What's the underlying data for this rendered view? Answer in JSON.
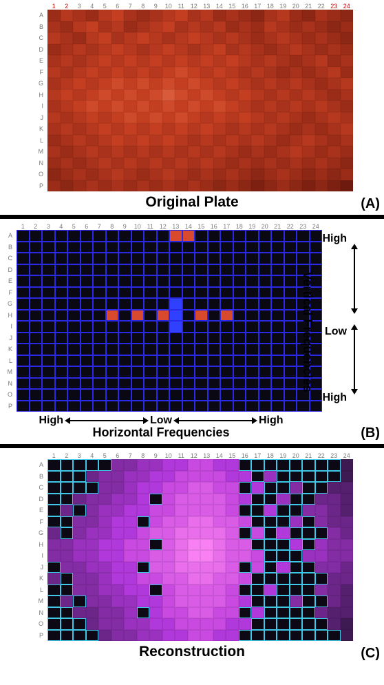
{
  "dims": {
    "rows": 16,
    "cols": 24
  },
  "rowLabels": [
    "A",
    "B",
    "C",
    "D",
    "E",
    "F",
    "G",
    "H",
    "I",
    "J",
    "K",
    "L",
    "M",
    "N",
    "O",
    "P"
  ],
  "colLabels": [
    "1",
    "2",
    "3",
    "4",
    "5",
    "6",
    "7",
    "8",
    "9",
    "10",
    "11",
    "12",
    "13",
    "14",
    "15",
    "16",
    "17",
    "18",
    "19",
    "20",
    "21",
    "22",
    "23",
    "24"
  ],
  "panelA": {
    "caption": "Original Plate",
    "label": "(A)",
    "redCols": [
      1,
      2,
      23,
      24
    ],
    "palette": [
      "#6e1a0e",
      "#7d2012",
      "#8c2615",
      "#9a2c18",
      "#a8321b",
      "#b6381e",
      "#c43e21",
      "#cf4a2a",
      "#d85a3b",
      "#e06b4d"
    ],
    "cells": [
      [
        3,
        5,
        4,
        3,
        5,
        6,
        4,
        3,
        4,
        5,
        6,
        4,
        5,
        3,
        4,
        3,
        2,
        4,
        5,
        3,
        2,
        4,
        3,
        2
      ],
      [
        4,
        3,
        5,
        6,
        4,
        5,
        3,
        4,
        5,
        6,
        4,
        5,
        4,
        5,
        3,
        4,
        3,
        5,
        4,
        3,
        4,
        3,
        2,
        3
      ],
      [
        5,
        4,
        3,
        5,
        6,
        4,
        5,
        6,
        5,
        4,
        5,
        6,
        5,
        4,
        5,
        4,
        3,
        4,
        5,
        4,
        3,
        4,
        3,
        2
      ],
      [
        3,
        4,
        5,
        4,
        5,
        6,
        5,
        4,
        5,
        6,
        5,
        4,
        5,
        6,
        4,
        5,
        4,
        3,
        4,
        5,
        4,
        3,
        4,
        3
      ],
      [
        4,
        5,
        4,
        5,
        6,
        5,
        6,
        5,
        6,
        5,
        6,
        5,
        6,
        5,
        6,
        5,
        4,
        5,
        4,
        3,
        4,
        5,
        3,
        4
      ],
      [
        5,
        4,
        5,
        6,
        5,
        6,
        5,
        6,
        5,
        6,
        7,
        6,
        5,
        6,
        5,
        4,
        5,
        4,
        3,
        4,
        3,
        4,
        5,
        3
      ],
      [
        4,
        5,
        6,
        5,
        6,
        7,
        6,
        7,
        6,
        7,
        6,
        7,
        6,
        5,
        6,
        5,
        4,
        5,
        4,
        5,
        4,
        3,
        4,
        5
      ],
      [
        5,
        6,
        5,
        6,
        7,
        6,
        7,
        6,
        7,
        8,
        7,
        6,
        7,
        6,
        5,
        6,
        5,
        4,
        5,
        4,
        5,
        4,
        3,
        4
      ],
      [
        4,
        5,
        6,
        7,
        6,
        7,
        6,
        7,
        6,
        7,
        6,
        7,
        6,
        7,
        6,
        5,
        4,
        5,
        4,
        5,
        4,
        5,
        4,
        3
      ],
      [
        5,
        4,
        5,
        6,
        5,
        6,
        7,
        6,
        7,
        6,
        7,
        6,
        5,
        6,
        5,
        6,
        5,
        4,
        5,
        4,
        3,
        4,
        5,
        4
      ],
      [
        4,
        5,
        4,
        5,
        6,
        5,
        6,
        5,
        6,
        5,
        6,
        5,
        6,
        5,
        4,
        5,
        4,
        5,
        4,
        3,
        4,
        3,
        4,
        5
      ],
      [
        3,
        4,
        5,
        4,
        5,
        6,
        5,
        6,
        5,
        6,
        5,
        4,
        5,
        4,
        5,
        4,
        5,
        4,
        3,
        4,
        5,
        4,
        3,
        4
      ],
      [
        4,
        3,
        4,
        5,
        4,
        5,
        4,
        5,
        4,
        5,
        4,
        5,
        4,
        5,
        4,
        3,
        4,
        3,
        4,
        5,
        4,
        3,
        4,
        3
      ],
      [
        3,
        4,
        3,
        4,
        5,
        4,
        5,
        4,
        5,
        4,
        5,
        4,
        5,
        4,
        3,
        4,
        3,
        4,
        3,
        4,
        3,
        4,
        3,
        2
      ],
      [
        2,
        3,
        4,
        3,
        4,
        5,
        4,
        3,
        4,
        5,
        4,
        3,
        4,
        3,
        4,
        3,
        2,
        3,
        4,
        3,
        2,
        3,
        2,
        3
      ],
      [
        3,
        2,
        3,
        4,
        3,
        4,
        3,
        4,
        3,
        4,
        3,
        4,
        3,
        2,
        3,
        2,
        1,
        2,
        3,
        2,
        1,
        2,
        1,
        0
      ]
    ]
  },
  "panelB": {
    "caption_h": "Horizontal Frequencies",
    "caption_v": "Vertical Frequencies",
    "label": "(B)",
    "text": {
      "high": "High",
      "low": "Low"
    },
    "bg": "#2a2ae6",
    "cellColor": "#0a0812",
    "highlightRed": "#d9492e",
    "highlightBlue": "#3040ff",
    "redCells": [
      [
        0,
        12
      ],
      [
        0,
        13
      ],
      [
        7,
        7
      ],
      [
        7,
        9
      ],
      [
        7,
        11
      ],
      [
        7,
        14
      ],
      [
        7,
        16
      ]
    ],
    "blueCells": [
      [
        6,
        12
      ],
      [
        7,
        12
      ],
      [
        8,
        12
      ]
    ]
  },
  "panelC": {
    "caption": "Reconstruction",
    "label": "(C)",
    "blackColor": "#0c0814",
    "blackOutline": "#3fc8e8",
    "palette": [
      "#3e1a52",
      "#55206e",
      "#6c2689",
      "#832ca4",
      "#9a32bf",
      "#b138da",
      "#c84ae0",
      "#d85ce6",
      "#e86eec",
      "#f880f2"
    ],
    "blackMask": [
      [
        1,
        1,
        1,
        1,
        1,
        0,
        0,
        0,
        0,
        0,
        0,
        0,
        0,
        0,
        0,
        1,
        1,
        1,
        1,
        1,
        1,
        1,
        1,
        0
      ],
      [
        1,
        1,
        1,
        0,
        0,
        0,
        0,
        0,
        0,
        0,
        0,
        0,
        0,
        0,
        0,
        0,
        1,
        0,
        1,
        1,
        1,
        1,
        1,
        0
      ],
      [
        1,
        1,
        1,
        1,
        0,
        0,
        0,
        0,
        0,
        0,
        0,
        0,
        0,
        0,
        0,
        1,
        0,
        1,
        1,
        0,
        1,
        1,
        0,
        0
      ],
      [
        1,
        1,
        0,
        0,
        0,
        0,
        0,
        0,
        1,
        0,
        0,
        0,
        0,
        0,
        0,
        0,
        1,
        1,
        0,
        1,
        1,
        0,
        0,
        0
      ],
      [
        1,
        0,
        1,
        0,
        0,
        0,
        0,
        0,
        0,
        0,
        0,
        0,
        0,
        0,
        0,
        1,
        1,
        0,
        1,
        1,
        0,
        0,
        0,
        0
      ],
      [
        1,
        1,
        0,
        0,
        0,
        0,
        0,
        1,
        0,
        0,
        0,
        0,
        0,
        0,
        0,
        0,
        1,
        1,
        1,
        0,
        1,
        0,
        0,
        0
      ],
      [
        0,
        1,
        0,
        0,
        0,
        0,
        0,
        0,
        0,
        0,
        0,
        0,
        0,
        0,
        0,
        1,
        0,
        1,
        0,
        1,
        1,
        1,
        0,
        0
      ],
      [
        0,
        0,
        0,
        0,
        0,
        0,
        0,
        0,
        1,
        0,
        0,
        0,
        0,
        0,
        0,
        0,
        1,
        1,
        1,
        0,
        1,
        0,
        0,
        0
      ],
      [
        0,
        0,
        0,
        0,
        0,
        0,
        0,
        0,
        0,
        0,
        0,
        0,
        0,
        0,
        0,
        0,
        0,
        1,
        1,
        1,
        0,
        0,
        0,
        0
      ],
      [
        1,
        0,
        0,
        0,
        0,
        0,
        0,
        1,
        0,
        0,
        0,
        0,
        0,
        0,
        0,
        1,
        0,
        1,
        0,
        1,
        1,
        0,
        0,
        0
      ],
      [
        0,
        1,
        0,
        0,
        0,
        0,
        0,
        0,
        0,
        0,
        0,
        0,
        0,
        0,
        0,
        0,
        1,
        1,
        1,
        1,
        1,
        1,
        0,
        0
      ],
      [
        1,
        1,
        0,
        0,
        0,
        0,
        0,
        0,
        1,
        0,
        0,
        0,
        0,
        0,
        0,
        1,
        1,
        0,
        1,
        1,
        1,
        0,
        0,
        0
      ],
      [
        1,
        0,
        1,
        0,
        0,
        0,
        0,
        0,
        0,
        0,
        0,
        0,
        0,
        0,
        0,
        0,
        1,
        1,
        1,
        0,
        1,
        1,
        0,
        0
      ],
      [
        1,
        1,
        0,
        0,
        0,
        0,
        0,
        1,
        0,
        0,
        0,
        0,
        0,
        0,
        0,
        1,
        0,
        1,
        1,
        1,
        1,
        0,
        0,
        0
      ],
      [
        1,
        1,
        1,
        0,
        0,
        0,
        0,
        0,
        0,
        0,
        0,
        0,
        0,
        0,
        0,
        0,
        1,
        1,
        1,
        1,
        1,
        1,
        0,
        0
      ],
      [
        1,
        1,
        1,
        1,
        0,
        0,
        0,
        0,
        0,
        0,
        0,
        0,
        0,
        0,
        0,
        1,
        1,
        1,
        1,
        1,
        1,
        1,
        1,
        0
      ]
    ]
  }
}
